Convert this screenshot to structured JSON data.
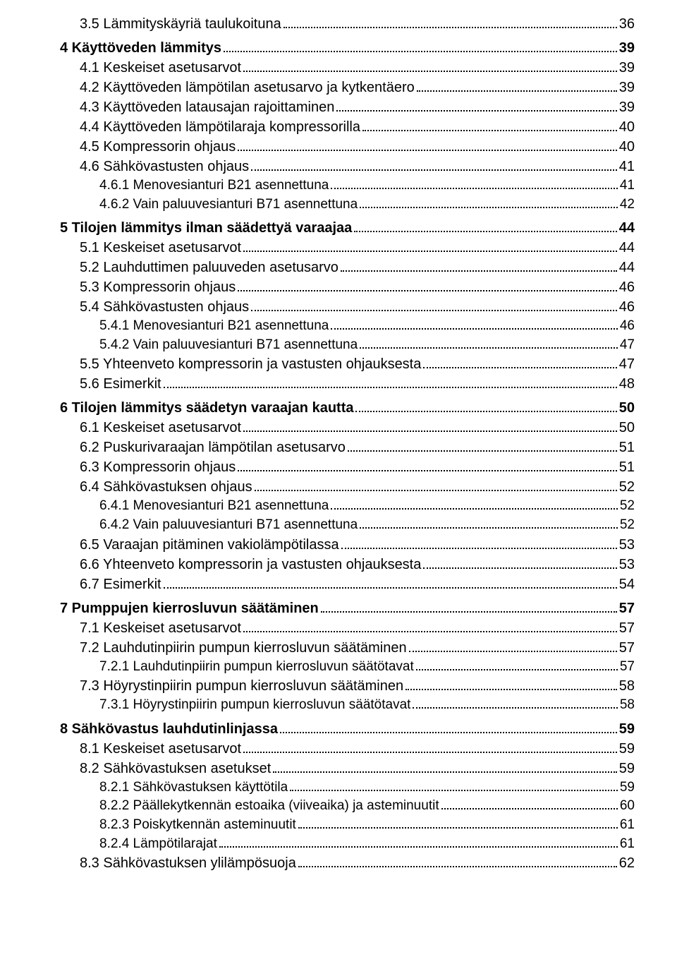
{
  "toc": [
    {
      "level": 1,
      "label": "3.5 Lämmityskäyriä taulukoituna",
      "page": "36"
    },
    {
      "level": 0,
      "label": "4 Käyttöveden lämmitys",
      "page": "39"
    },
    {
      "level": 1,
      "label": "4.1 Keskeiset asetusarvot",
      "page": "39"
    },
    {
      "level": 1,
      "label": "4.2 Käyttöveden lämpötilan asetusarvo ja kytkentäero",
      "page": "39"
    },
    {
      "level": 1,
      "label": "4.3 Käyttöveden latausajan rajoittaminen",
      "page": "39"
    },
    {
      "level": 1,
      "label": "4.4 Käyttöveden lämpötilaraja kompressorilla",
      "page": "40"
    },
    {
      "level": 1,
      "label": "4.5 Kompressorin ohjaus",
      "page": "40"
    },
    {
      "level": 1,
      "label": "4.6 Sähkövastusten ohjaus",
      "page": "41"
    },
    {
      "level": 2,
      "label": "4.6.1 Menovesianturi B21 asennettuna",
      "page": "41"
    },
    {
      "level": 2,
      "label": "4.6.2 Vain paluuvesianturi B71 asennettuna",
      "page": "42"
    },
    {
      "level": 0,
      "label": "5 Tilojen lämmitys ilman säädettyä varaajaa",
      "page": "44"
    },
    {
      "level": 1,
      "label": "5.1 Keskeiset asetusarvot",
      "page": "44"
    },
    {
      "level": 1,
      "label": "5.2 Lauhduttimen paluuveden asetusarvo",
      "page": "44"
    },
    {
      "level": 1,
      "label": "5.3 Kompressorin ohjaus",
      "page": "46"
    },
    {
      "level": 1,
      "label": "5.4 Sähkövastusten ohjaus",
      "page": "46"
    },
    {
      "level": 2,
      "label": "5.4.1 Menovesianturi B21 asennettuna",
      "page": "46"
    },
    {
      "level": 2,
      "label": "5.4.2 Vain paluuvesianturi B71 asennettuna",
      "page": "47"
    },
    {
      "level": 1,
      "label": "5.5 Yhteenveto kompressorin ja vastusten ohjauksesta",
      "page": "47"
    },
    {
      "level": 1,
      "label": "5.6 Esimerkit",
      "page": "48"
    },
    {
      "level": 0,
      "label": "6 Tilojen lämmitys säädetyn varaajan kautta",
      "page": "50"
    },
    {
      "level": 1,
      "label": "6.1 Keskeiset asetusarvot",
      "page": "50"
    },
    {
      "level": 1,
      "label": "6.2 Puskurivaraajan lämpötilan asetusarvo",
      "page": "51"
    },
    {
      "level": 1,
      "label": "6.3 Kompressorin ohjaus",
      "page": "51"
    },
    {
      "level": 1,
      "label": "6.4 Sähkövastuksen ohjaus",
      "page": "52"
    },
    {
      "level": 2,
      "label": "6.4.1 Menovesianturi B21 asennettuna",
      "page": "52"
    },
    {
      "level": 2,
      "label": "6.4.2 Vain paluuvesianturi B71 asennettuna",
      "page": "52"
    },
    {
      "level": 1,
      "label": "6.5 Varaajan pitäminen vakiolämpötilassa",
      "page": "53"
    },
    {
      "level": 1,
      "label": "6.6 Yhteenveto kompressorin ja vastusten ohjauksesta",
      "page": "53"
    },
    {
      "level": 1,
      "label": "6.7 Esimerkit",
      "page": "54"
    },
    {
      "level": 0,
      "label": "7 Pumppujen kierrosluvun säätäminen",
      "page": "57"
    },
    {
      "level": 1,
      "label": "7.1 Keskeiset asetusarvot",
      "page": "57"
    },
    {
      "level": 1,
      "label": "7.2 Lauhdutinpiirin pumpun kierrosluvun säätäminen",
      "page": "57"
    },
    {
      "level": 2,
      "label": "7.2.1 Lauhdutinpiirin pumpun kierrosluvun säätötavat",
      "page": "57"
    },
    {
      "level": 1,
      "label": "7.3 Höyrystinpiirin pumpun kierrosluvun säätäminen",
      "page": "58"
    },
    {
      "level": 2,
      "label": "7.3.1 Höyrystinpiirin pumpun kierrosluvun säätötavat",
      "page": "58"
    },
    {
      "level": 0,
      "label": "8 Sähkövastus lauhdutinlinjassa",
      "page": "59"
    },
    {
      "level": 1,
      "label": "8.1 Keskeiset asetusarvot",
      "page": "59"
    },
    {
      "level": 1,
      "label": "8.2 Sähkövastuksen asetukset",
      "page": "59"
    },
    {
      "level": 2,
      "label": "8.2.1 Sähkövastuksen käyttötila",
      "page": "59"
    },
    {
      "level": 2,
      "label": "8.2.2 Päällekytkennän estoaika (viiveaika) ja asteminuutit",
      "page": "60"
    },
    {
      "level": 2,
      "label": "8.2.3 Poiskytkennän asteminuutit",
      "page": "61"
    },
    {
      "level": 2,
      "label": "8.2.4 Lämpötilarajat",
      "page": "61"
    },
    {
      "level": 1,
      "label": "8.3 Sähkövastuksen ylilämpösuoja",
      "page": "62"
    }
  ]
}
